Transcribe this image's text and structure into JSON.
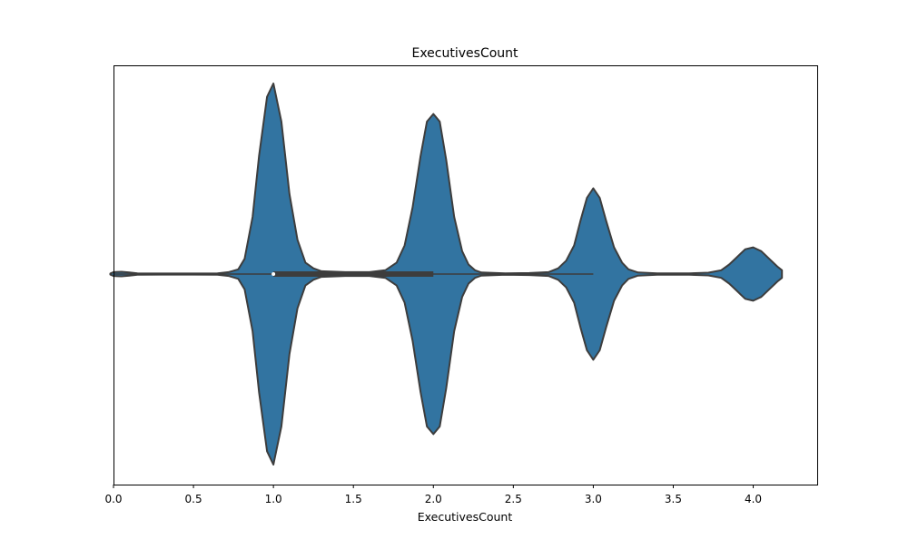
{
  "chart_data": {
    "type": "violin",
    "title": "ExecutivesCount",
    "xlabel": "ExecutivesCount",
    "ylabel": "",
    "xlim": [
      0.0,
      4.4
    ],
    "x_ticks": [
      0.0,
      0.5,
      1.0,
      1.5,
      2.0,
      2.5,
      3.0,
      3.5,
      4.0
    ],
    "x_tick_labels": [
      "0.0",
      "0.5",
      "1.0",
      "1.5",
      "2.0",
      "2.5",
      "3.0",
      "3.5",
      "4.0"
    ],
    "orientation": "horizontal",
    "fill_color": "#3274a1",
    "edge_color": "#3d3d3d",
    "grid": false,
    "density_profile": {
      "x": [
        -0.02,
        0.0,
        0.05,
        0.1,
        0.15,
        0.3,
        0.5,
        0.65,
        0.72,
        0.78,
        0.82,
        0.87,
        0.91,
        0.96,
        1.0,
        1.05,
        1.1,
        1.15,
        1.2,
        1.25,
        1.3,
        1.45,
        1.6,
        1.7,
        1.77,
        1.82,
        1.87,
        1.92,
        1.96,
        2.0,
        2.04,
        2.08,
        2.13,
        2.18,
        2.22,
        2.26,
        2.3,
        2.45,
        2.6,
        2.72,
        2.78,
        2.83,
        2.88,
        2.92,
        2.96,
        3.0,
        3.04,
        3.08,
        3.13,
        3.18,
        3.22,
        3.28,
        3.4,
        3.6,
        3.72,
        3.8,
        3.85,
        3.9,
        3.95,
        4.0,
        4.05,
        4.1,
        4.15,
        4.18
      ],
      "half_width": [
        0.003,
        0.01,
        0.012,
        0.008,
        0.004,
        0.003,
        0.003,
        0.004,
        0.01,
        0.025,
        0.08,
        0.3,
        0.62,
        0.93,
        1.0,
        0.8,
        0.42,
        0.18,
        0.06,
        0.03,
        0.015,
        0.01,
        0.01,
        0.02,
        0.06,
        0.15,
        0.35,
        0.62,
        0.8,
        0.84,
        0.8,
        0.6,
        0.3,
        0.12,
        0.05,
        0.02,
        0.008,
        0.004,
        0.005,
        0.01,
        0.03,
        0.07,
        0.15,
        0.28,
        0.4,
        0.45,
        0.4,
        0.28,
        0.14,
        0.06,
        0.025,
        0.008,
        0.004,
        0.004,
        0.007,
        0.02,
        0.05,
        0.09,
        0.13,
        0.14,
        0.12,
        0.08,
        0.04,
        0.02
      ]
    },
    "box": {
      "whisker_low": 0.0,
      "q1": 1.0,
      "median": 1.0,
      "q3": 2.0,
      "whisker_high": 3.0
    }
  }
}
